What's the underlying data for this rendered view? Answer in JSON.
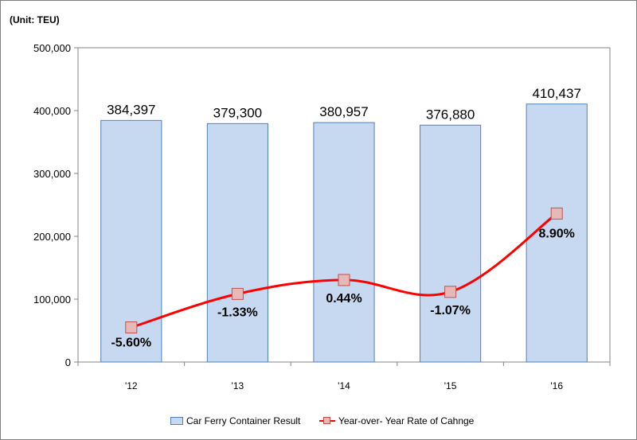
{
  "unit_label": "(Unit: TEU)",
  "chart_data": {
    "type": "bar",
    "categories": [
      "'12",
      "'13",
      "'14",
      "'15",
      "'16"
    ],
    "ylim": [
      0,
      500000
    ],
    "yticks": [
      0,
      100000,
      200000,
      300000,
      400000,
      500000
    ],
    "ytick_labels": [
      "0",
      "100,000",
      "200,000",
      "300,000",
      "400,000",
      "500,000"
    ],
    "series": [
      {
        "name": "Car Ferry Container Result",
        "type": "bar",
        "values": [
          384397,
          379300,
          380957,
          376880,
          410437
        ],
        "labels": [
          "384,397",
          "379,300",
          "380,957",
          "376,880",
          "410,437"
        ],
        "color": "#c6d9f1",
        "edge_color": "#4f81bd"
      },
      {
        "name": "Year-over- Year Rate of Cahnge",
        "type": "line",
        "values": [
          -5.6,
          -1.33,
          0.44,
          -1.07,
          8.9
        ],
        "labels": [
          "-5.60%",
          "-1.33%",
          "0.44%",
          "-1.07%",
          "8.90%"
        ],
        "color": "#ff0000",
        "marker_color": "#e6b9b8"
      }
    ],
    "secondary_ylim": [
      -10,
      30
    ],
    "grid": false,
    "legend_position": "bottom"
  }
}
